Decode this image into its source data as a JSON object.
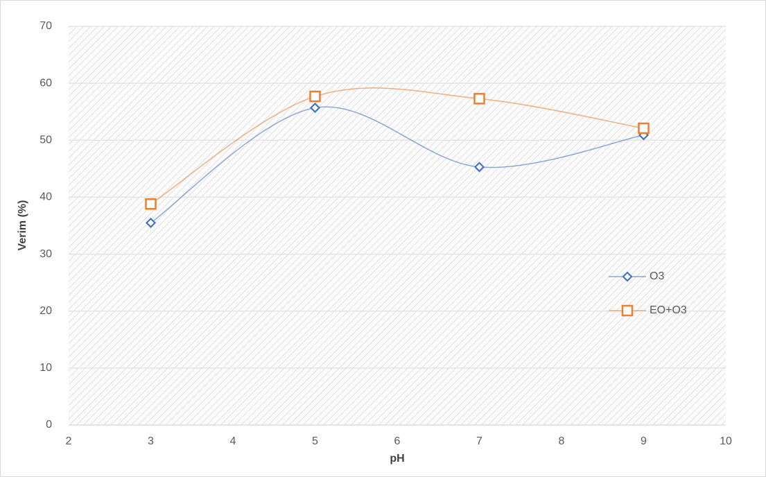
{
  "chart_data": {
    "type": "scatter-smooth",
    "x_label": "pH",
    "y_label": "Verim (%)",
    "x": [
      3,
      5,
      7,
      9
    ],
    "series": [
      {
        "name": "O3",
        "color": "#4472c4",
        "marker": "diamond",
        "values": [
          35.5,
          55.7,
          45.3,
          50.9
        ]
      },
      {
        "name": "EO+O3",
        "color": "#ed7d31",
        "marker": "square",
        "values": [
          38.8,
          57.7,
          57.3,
          52.1
        ]
      }
    ],
    "xlim": [
      2,
      10
    ],
    "xticks": [
      2,
      3,
      4,
      5,
      6,
      7,
      8,
      9,
      10
    ],
    "ylim": [
      0,
      70
    ],
    "yticks": [
      0,
      10,
      20,
      30,
      40,
      50,
      60,
      70
    ],
    "grid": true,
    "legend": "right"
  }
}
